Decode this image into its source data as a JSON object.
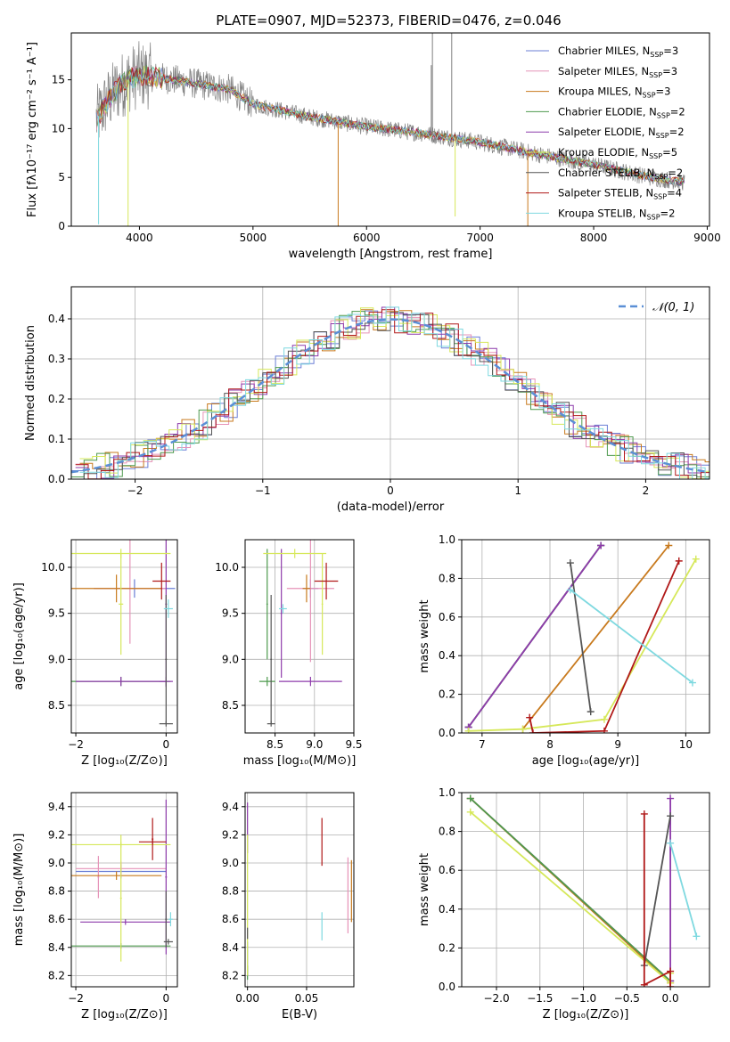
{
  "figure": {
    "title": "PLATE=0907, MJD=52373, FIBERID=0476, z=0.046"
  },
  "palette": {
    "models": [
      "#6b7fd6",
      "#e693b8",
      "#c87a1e",
      "#4e9a4e",
      "#8e3bab",
      "#d6e85a",
      "#555555",
      "#b01818",
      "#7fd9e0"
    ],
    "data_gray": "#808080",
    "normal_dash": "#5b8fd6",
    "grid": "#b0b0b0"
  },
  "chart_data": [
    {
      "id": "spectrum",
      "type": "line",
      "title": "PLATE=0907, MJD=52373, FIBERID=0476, z=0.046",
      "xlabel": "wavelength [Angstrom, rest frame]",
      "ylabel": "Flux [fλ10⁻¹⁷ erg cm⁻² s⁻¹ A⁻¹]",
      "xlim": [
        3400,
        9020
      ],
      "ylim": [
        0,
        19.8
      ],
      "xticks": [
        4000,
        5000,
        6000,
        7000,
        8000,
        9000
      ],
      "yticks": [
        0,
        5,
        10,
        15
      ],
      "grid": false,
      "legend_position": "top-right",
      "series": [
        {
          "name": "Chabrier MILES, N_SSP=3",
          "label": "Chabrier MILES, N",
          "sub": "SSP",
          "suffix": "=3"
        },
        {
          "name": "Salpeter MILES, N_SSP=3",
          "label": "Salpeter MILES, N",
          "sub": "SSP",
          "suffix": "=3"
        },
        {
          "name": "Kroupa MILES, N_SSP=3",
          "label": "Kroupa MILES, N",
          "sub": "SSP",
          "suffix": "=3"
        },
        {
          "name": "Chabrier ELODIE, N_SSP=2",
          "label": "Chabrier ELODIE, N",
          "sub": "SSP",
          "suffix": "=2"
        },
        {
          "name": "Salpeter ELODIE, N_SSP=2",
          "label": "Salpeter ELODIE, N",
          "sub": "SSP",
          "suffix": "=2"
        },
        {
          "name": "Kroupa ELODIE, N_SSP=5",
          "label": "Kroupa ELODIE, N",
          "sub": "SSP",
          "suffix": "=5"
        },
        {
          "name": "Chabrier STELIB, N_SSP=2",
          "label": "Chabrier STELIB, N",
          "sub": "SSP",
          "suffix": "=2"
        },
        {
          "name": "Salpeter STELIB, N_SSP=4",
          "label": "Salpeter STELIB, N",
          "sub": "SSP",
          "suffix": "=4"
        },
        {
          "name": "Kroupa STELIB, N_SSP=2",
          "label": "Kroupa STELIB, N",
          "sub": "SSP",
          "suffix": "=2"
        }
      ],
      "continuum": {
        "x": [
          3600,
          3700,
          3800,
          3900,
          4000,
          4200,
          4400,
          4600,
          4800,
          5000,
          5500,
          6000,
          6500,
          7000,
          7500,
          8000,
          8500,
          8800
        ],
        "y": [
          10.5,
          12.5,
          14.0,
          15.0,
          15.5,
          15.2,
          14.8,
          14.4,
          14.0,
          12.5,
          11.2,
          10.2,
          9.5,
          8.6,
          7.4,
          6.3,
          5.0,
          4.5
        ]
      },
      "features": [
        {
          "x": 3640,
          "y": 0.2
        },
        {
          "x": 3900,
          "y": 0
        },
        {
          "x": 5750,
          "y": 0
        },
        {
          "x": 6780,
          "y": 1.0
        },
        {
          "x": 7420,
          "y": 0
        },
        {
          "x": 6570,
          "y": 16.5
        },
        {
          "x": 6580,
          "y": 19.8
        },
        {
          "x": 6750,
          "y": 19.8
        }
      ]
    },
    {
      "id": "residual_histogram",
      "type": "line",
      "xlabel": "(data-model)/error",
      "ylabel": "Normed distribution",
      "xlim": [
        -2.5,
        2.5
      ],
      "ylim": [
        0,
        0.48
      ],
      "xticks": [
        -2,
        -1,
        0,
        1,
        2
      ],
      "yticks": [
        0.0,
        0.1,
        0.2,
        0.3,
        0.4
      ],
      "grid": true,
      "legend_position": "top-right",
      "legend": [
        {
          "name": "𝒩(0, 1)",
          "style": "dashed"
        }
      ],
      "normal": {
        "mu": 0,
        "sigma": 1
      },
      "bin_width": 0.1
    },
    {
      "id": "age_vs_Z",
      "type": "scatter",
      "xlabel": "Z [log₁₀(Z/Z⊙)]",
      "ylabel": "age  [log₁₀(age/yr)]",
      "xlim": [
        -2.1,
        0.25
      ],
      "ylim": [
        8.2,
        10.3
      ],
      "xticks": [
        -2,
        0
      ],
      "yticks": [
        8.5,
        9.0,
        9.5,
        10.0
      ],
      "grid": true,
      "crosses": [
        {
          "series": 0,
          "x": -0.7,
          "xerr": 0.9,
          "y": 9.77,
          "yerr": 0.1
        },
        {
          "series": 1,
          "x": -0.8,
          "xerr": 0.8,
          "y": 9.77,
          "yerr": 0.6
        },
        {
          "series": 2,
          "x": -1.1,
          "xerr": 1.0,
          "y": 9.77,
          "yerr": 0.15
        },
        {
          "series": 3,
          "x": -1.0,
          "xerr": 1.1,
          "y": 8.76,
          "yerr": 0.05
        },
        {
          "series": 4,
          "x": 0.0,
          "xerr": 0.15,
          "y": 8.76,
          "yerr": 0.05
        },
        {
          "series": 4,
          "x": -1.0,
          "xerr": 1.0,
          "y": 8.76,
          "yerr": 0.05
        },
        {
          "series": 4,
          "x": 0.0,
          "xerr": 0.02,
          "y": 9.6,
          "yerr": 0.9
        },
        {
          "series": 5,
          "x": -1.0,
          "xerr": 1.1,
          "y": 10.15,
          "yerr": 0.05
        },
        {
          "series": 5,
          "x": -1.0,
          "xerr": 0.05,
          "y": 9.6,
          "yerr": 0.55
        },
        {
          "series": 6,
          "x": 0.0,
          "xerr": 0.15,
          "y": 8.3,
          "yerr": 0.03
        },
        {
          "series": 6,
          "x": 0.0,
          "xerr": 0.02,
          "y": 9.0,
          "yerr": 0.7
        },
        {
          "series": 7,
          "x": -0.1,
          "xerr": 0.2,
          "y": 9.85,
          "yerr": 0.2
        },
        {
          "series": 8,
          "x": 0.05,
          "xerr": 0.1,
          "y": 9.55,
          "yerr": 0.1
        }
      ]
    },
    {
      "id": "age_vs_mass",
      "type": "scatter",
      "xlabel": "mass [log₁₀(M/M⊙)]",
      "ylabel": "",
      "xlim": [
        8.12,
        9.5
      ],
      "ylim": [
        8.2,
        10.3
      ],
      "xticks": [
        8.5,
        9.0,
        9.5
      ],
      "yticks": [
        8.5,
        9.0,
        9.5,
        10.0
      ],
      "grid": true,
      "crosses": [
        {
          "series": 0,
          "x": 8.95,
          "xerr": 0.1,
          "y": 9.77,
          "yerr": 0.1
        },
        {
          "series": 1,
          "x": 8.95,
          "xerr": 0.3,
          "y": 9.77,
          "yerr": 0.8
        },
        {
          "series": 2,
          "x": 8.9,
          "xerr": 0.05,
          "y": 9.77,
          "yerr": 0.15
        },
        {
          "series": 3,
          "x": 8.4,
          "xerr": 0.1,
          "y": 8.76,
          "yerr": 0.05
        },
        {
          "series": 3,
          "x": 8.4,
          "xerr": 0.01,
          "y": 9.6,
          "yerr": 0.6
        },
        {
          "series": 4,
          "x": 8.95,
          "xerr": 0.4,
          "y": 8.76,
          "yerr": 0.05
        },
        {
          "series": 4,
          "x": 8.58,
          "xerr": 0.01,
          "y": 9.5,
          "yerr": 0.7
        },
        {
          "series": 5,
          "x": 8.75,
          "xerr": 0.4,
          "y": 10.15,
          "yerr": 0.05
        },
        {
          "series": 5,
          "x": 9.1,
          "xerr": 0.01,
          "y": 9.6,
          "yerr": 0.55
        },
        {
          "series": 6,
          "x": 8.45,
          "xerr": 0.05,
          "y": 8.3,
          "yerr": 0.03
        },
        {
          "series": 6,
          "x": 8.45,
          "xerr": 0.01,
          "y": 9.0,
          "yerr": 0.7
        },
        {
          "series": 7,
          "x": 9.15,
          "xerr": 0.15,
          "y": 9.85,
          "yerr": 0.2
        },
        {
          "series": 8,
          "x": 8.6,
          "xerr": 0.05,
          "y": 9.55,
          "yerr": 0.05
        }
      ]
    },
    {
      "id": "weight_vs_age",
      "type": "line",
      "xlabel": "age  [log₁₀(age/yr)]",
      "ylabel": "mass weight",
      "xlim": [
        6.7,
        10.35
      ],
      "ylim": [
        0,
        1.0
      ],
      "xticks": [
        7,
        8,
        9,
        10
      ],
      "yticks": [
        0.0,
        0.2,
        0.4,
        0.6,
        0.8,
        1.0
      ],
      "grid": true,
      "series": [
        {
          "series": 0,
          "x": [
            6.8,
            8.75
          ],
          "y": [
            0.03,
            0.97
          ]
        },
        {
          "series": 1,
          "x": [
            6.8,
            8.75
          ],
          "y": [
            0.03,
            0.97
          ]
        },
        {
          "series": 2,
          "x": [
            7.6,
            9.75
          ],
          "y": [
            0.02,
            0.97
          ]
        },
        {
          "series": 3,
          "x": [
            6.8,
            8.75
          ],
          "y": [
            0.03,
            0.97
          ]
        },
        {
          "series": 4,
          "x": [
            6.8,
            8.75
          ],
          "y": [
            0.03,
            0.97
          ]
        },
        {
          "series": 5,
          "x": [
            6.8,
            7.6,
            8.8,
            10.15
          ],
          "y": [
            0.01,
            0.02,
            0.07,
            0.9
          ]
        },
        {
          "series": 6,
          "x": [
            8.3,
            8.6
          ],
          "y": [
            0.88,
            0.11
          ]
        },
        {
          "series": 7,
          "x": [
            7.7,
            7.75,
            8.8,
            9.9
          ],
          "y": [
            0.08,
            0.0,
            0.01,
            0.89
          ]
        },
        {
          "series": 8,
          "x": [
            8.3,
            10.1
          ],
          "y": [
            0.74,
            0.26
          ]
        }
      ]
    },
    {
      "id": "mass_vs_Z",
      "type": "scatter",
      "xlabel": "Z [log₁₀(Z/Z⊙)]",
      "ylabel": "mass [log₁₀(M/M⊙)]",
      "xlim": [
        -2.1,
        0.25
      ],
      "ylim": [
        8.12,
        9.5
      ],
      "xticks": [
        -2,
        0
      ],
      "yticks": [
        8.2,
        8.4,
        8.6,
        8.8,
        9.0,
        9.2,
        9.4
      ],
      "grid": true,
      "crosses": [
        {
          "series": 0,
          "x": -1.0,
          "xerr": 1.0,
          "y": 8.94,
          "yerr": 0.05
        },
        {
          "series": 1,
          "x": -1.0,
          "xerr": 1.0,
          "y": 8.96,
          "yerr": 0.05
        },
        {
          "series": 1,
          "x": -1.5,
          "xerr": 0.02,
          "y": 8.9,
          "yerr": 0.15
        },
        {
          "series": 2,
          "x": -1.1,
          "xerr": 1.0,
          "y": 8.91,
          "yerr": 0.03
        },
        {
          "series": 3,
          "x": -1.0,
          "xerr": 1.1,
          "y": 8.41,
          "yerr": 0.02
        },
        {
          "series": 4,
          "x": -0.9,
          "xerr": 1.0,
          "y": 8.58,
          "yerr": 0.02
        },
        {
          "series": 4,
          "x": 0.0,
          "xerr": 0.02,
          "y": 8.9,
          "yerr": 0.55
        },
        {
          "series": 5,
          "x": -1.0,
          "xerr": 1.1,
          "y": 9.13,
          "yerr": 0.02
        },
        {
          "series": 5,
          "x": -1.0,
          "xerr": 0.02,
          "y": 8.75,
          "yerr": 0.45
        },
        {
          "series": 6,
          "x": 0.05,
          "xerr": 0.1,
          "y": 8.44,
          "yerr": 0.02
        },
        {
          "series": 6,
          "x": 0.0,
          "xerr": 0.02,
          "y": 8.6,
          "yerr": 0.2
        },
        {
          "series": 7,
          "x": -0.3,
          "xerr": 0.3,
          "y": 9.15,
          "yerr": 0.02
        },
        {
          "series": 7,
          "x": -0.3,
          "xerr": 0.02,
          "y": 9.17,
          "yerr": 0.15
        },
        {
          "series": 8,
          "x": 0.1,
          "xerr": 0.05,
          "y": 8.6,
          "yerr": 0.05
        }
      ]
    },
    {
      "id": "mass_vs_ebv",
      "type": "scatter",
      "xlabel": "E(B-V)",
      "ylabel": "",
      "xlim": [
        -0.002,
        0.09
      ],
      "ylim": [
        8.12,
        9.5
      ],
      "xticks": [
        0.0,
        0.05
      ],
      "yticks": [
        8.2,
        8.4,
        8.6,
        8.8,
        9.0,
        9.2,
        9.4
      ],
      "grid": true,
      "crosses": [
        {
          "series": 0,
          "x": 0.0,
          "xerr": 0,
          "y": 8.32,
          "yerr": 0.12
        },
        {
          "series": 1,
          "x": 0.085,
          "xerr": 0,
          "y": 8.77,
          "yerr": 0.27
        },
        {
          "series": 2,
          "x": 0.088,
          "xerr": 0,
          "y": 8.8,
          "yerr": 0.22
        },
        {
          "series": 3,
          "x": 0.0,
          "xerr": 0,
          "y": 8.22,
          "yerr": 0.05
        },
        {
          "series": 4,
          "x": 0.0,
          "xerr": 0,
          "y": 9.25,
          "yerr": 0.18
        },
        {
          "series": 5,
          "x": 0.0,
          "xerr": 0,
          "y": 8.7,
          "yerr": 0.5
        },
        {
          "series": 6,
          "x": 0.0,
          "xerr": 0,
          "y": 8.5,
          "yerr": 0.04
        },
        {
          "series": 7,
          "x": 0.063,
          "xerr": 0,
          "y": 9.15,
          "yerr": 0.17
        },
        {
          "series": 8,
          "x": 0.063,
          "xerr": 0,
          "y": 8.55,
          "yerr": 0.1
        }
      ]
    },
    {
      "id": "weight_vs_Z",
      "type": "line",
      "xlabel": "Z [log₁₀(Z/Z⊙)]",
      "ylabel": "mass weight",
      "xlim": [
        -2.4,
        0.45
      ],
      "ylim": [
        0,
        1.0
      ],
      "xticks": [
        -2.0,
        -1.5,
        -1.0,
        -0.5,
        0.0
      ],
      "yticks": [
        0.0,
        0.2,
        0.4,
        0.6,
        0.8,
        1.0
      ],
      "grid": true,
      "series": [
        {
          "series": 0,
          "x": [
            -2.3,
            0.0
          ],
          "y": [
            0.97,
            0.03
          ]
        },
        {
          "series": 1,
          "x": [
            -2.3,
            0.0
          ],
          "y": [
            0.97,
            0.03
          ]
        },
        {
          "series": 2,
          "x": [
            -2.3,
            0.0
          ],
          "y": [
            0.97,
            0.02
          ]
        },
        {
          "series": 3,
          "x": [
            -2.3,
            0.0
          ],
          "y": [
            0.97,
            0.03
          ]
        },
        {
          "series": 4,
          "x": [
            0.0,
            0.0
          ],
          "y": [
            0.97,
            0.03
          ]
        },
        {
          "series": 5,
          "x": [
            -2.3,
            0.0,
            0.0
          ],
          "y": [
            0.9,
            0.02,
            0.07
          ]
        },
        {
          "series": 6,
          "x": [
            -0.3,
            0.0
          ],
          "y": [
            0.11,
            0.88
          ]
        },
        {
          "series": 7,
          "x": [
            -0.3,
            -0.3,
            0.0,
            0.0
          ],
          "y": [
            0.89,
            0.01,
            0.08,
            0.0
          ]
        },
        {
          "series": 8,
          "x": [
            0.0,
            0.3
          ],
          "y": [
            0.74,
            0.26
          ]
        }
      ]
    }
  ]
}
